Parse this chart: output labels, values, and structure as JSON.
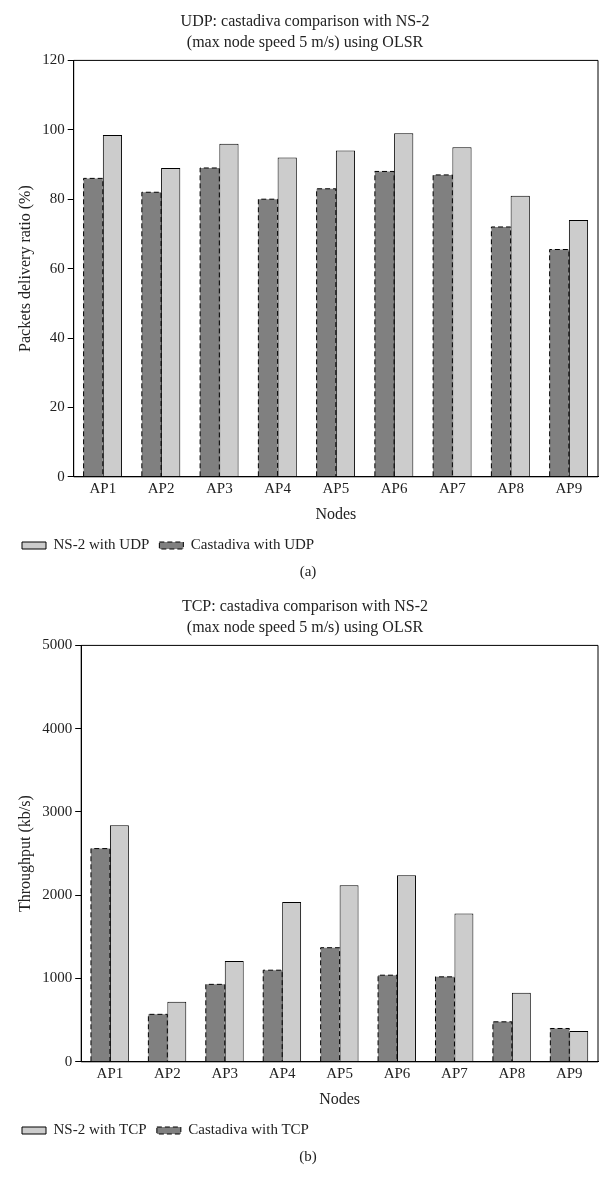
{
  "chart_data": [
    {
      "type": "bar",
      "title": "UDP: castadiva comparison with NS-2",
      "subtitle": "(max node speed 5 m/s) using OLSR",
      "xlabel": "Nodes",
      "ylabel": "Packets delivery ratio (%)",
      "categories": [
        "AP1",
        "AP2",
        "AP3",
        "AP4",
        "AP5",
        "AP6",
        "AP7",
        "AP8",
        "AP9"
      ],
      "series": [
        {
          "name": "Castadiva with UDP",
          "color": "#808080",
          "line_style": "dashed",
          "values": [
            86,
            82,
            89,
            80,
            83,
            88,
            87,
            72,
            65.5
          ]
        },
        {
          "name": "NS-2 with UDP",
          "color": "#cccccc",
          "line_style": "solid",
          "values": [
            98.5,
            89,
            96,
            92,
            94,
            99,
            95,
            81,
            74
          ]
        }
      ],
      "ylim": [
        0,
        120
      ],
      "yticks": [
        0,
        20,
        40,
        60,
        80,
        100,
        120
      ],
      "grid": false,
      "legend": "bottom",
      "annotations": [
        "(a)"
      ]
    },
    {
      "type": "bar",
      "title": "TCP: castadiva comparison with NS-2",
      "subtitle": "(max node speed 5 m/s) using OLSR",
      "xlabel": "Nodes",
      "ylabel": "Throughput (kb/s)",
      "categories": [
        "AP1",
        "AP2",
        "AP3",
        "AP4",
        "AP5",
        "AP6",
        "AP7",
        "AP8",
        "AP9"
      ],
      "series": [
        {
          "name": "Castadiva with TCP",
          "color": "#808080",
          "line_style": "dashed",
          "values": [
            2560,
            570,
            930,
            1100,
            1370,
            1040,
            1020,
            480,
            400
          ]
        },
        {
          "name": "NS-2 with TCP",
          "color": "#cccccc",
          "line_style": "solid",
          "values": [
            2840,
            720,
            1210,
            1920,
            2120,
            2240,
            1780,
            830,
            370
          ]
        }
      ],
      "ylim": [
        0,
        5000
      ],
      "yticks": [
        0,
        1000,
        2000,
        3000,
        4000,
        5000
      ],
      "grid": false,
      "legend": "bottom",
      "annotations": [
        "(b)"
      ]
    }
  ]
}
